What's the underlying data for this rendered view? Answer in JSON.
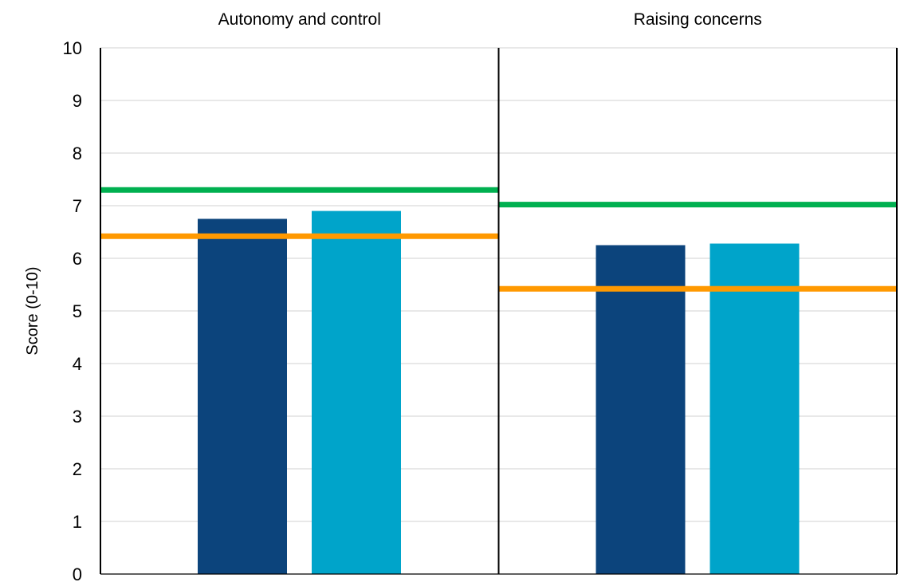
{
  "chart_data": {
    "type": "bar",
    "ylabel": "Score (0-10)",
    "ylim": [
      0,
      10
    ],
    "yticks": [
      "0",
      "1",
      "2",
      "3",
      "4",
      "5",
      "6",
      "7",
      "8",
      "9",
      "10"
    ],
    "grid": true,
    "panels": [
      {
        "title": "Autonomy and control",
        "bars": [
          {
            "value": 6.75,
            "color": "#0c447c"
          },
          {
            "value": 6.9,
            "color": "#00a4ca"
          }
        ],
        "reference_lines": [
          {
            "value": 7.3,
            "color": "#00b050"
          },
          {
            "value": 6.42,
            "color": "#ff9900"
          }
        ]
      },
      {
        "title": "Raising concerns",
        "bars": [
          {
            "value": 6.25,
            "color": "#0c447c"
          },
          {
            "value": 6.28,
            "color": "#00a4ca"
          }
        ],
        "reference_lines": [
          {
            "value": 7.02,
            "color": "#00b050"
          },
          {
            "value": 5.42,
            "color": "#ff9900"
          }
        ]
      }
    ]
  }
}
